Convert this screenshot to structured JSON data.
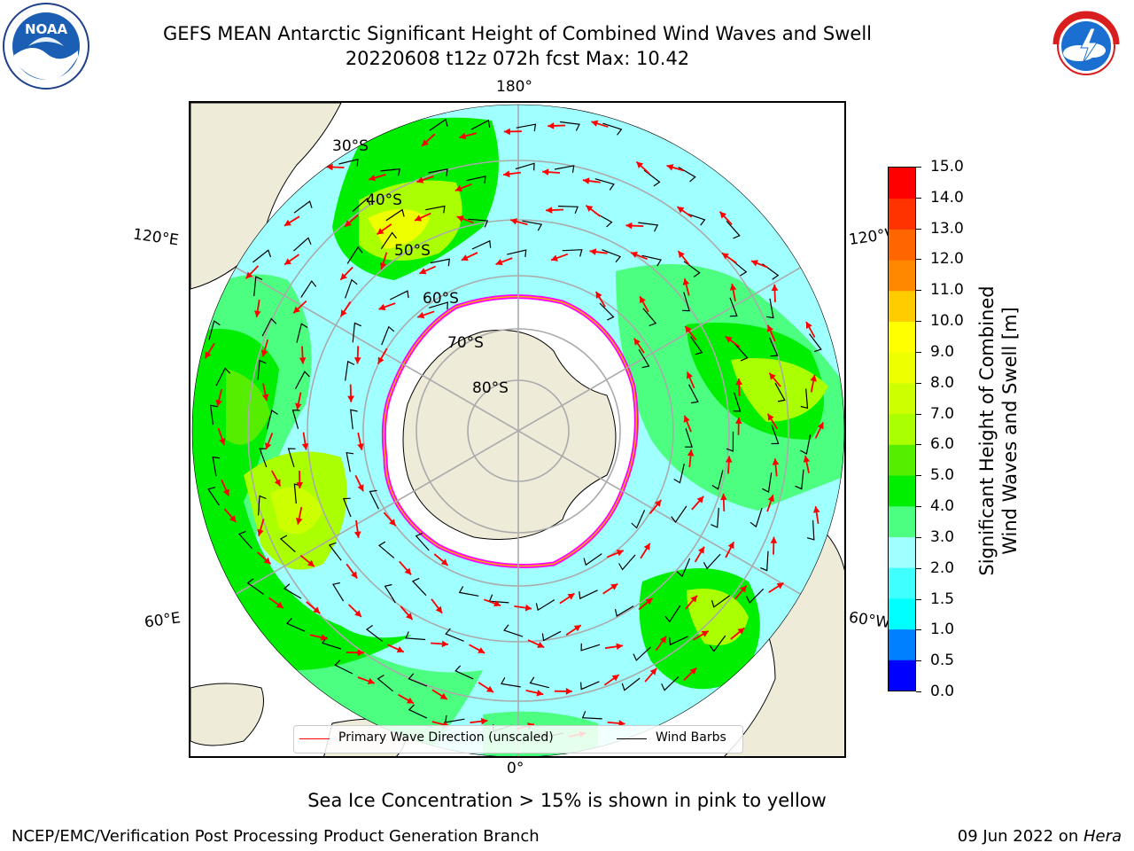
{
  "header": {
    "title_line1": "GEFS MEAN Antarctic Significant Height of Combined Wind Waves and Swell",
    "title_line2": "20220608 t12z 072h fcst   Max: 10.42"
  },
  "logos": {
    "noaa": {
      "icon": "noaa-logo-icon",
      "text": "NOAA",
      "ring_text": "NATIONAL OCEANIC AND ATMOSPHERIC ADMINISTRATION · U.S. DEPARTMENT OF COMMERCE"
    },
    "nws": {
      "icon": "nws-logo-icon",
      "ring_text": "NATIONAL WEATHER SERVICE"
    }
  },
  "map": {
    "projection": "south-polar-stereographic",
    "lon_labels": {
      "top": "180°",
      "bottom": "0°",
      "left_upper": "120°E",
      "left_lower": "60°E",
      "right_upper": "120°W",
      "right_lower": "60°W"
    },
    "lat_labels": [
      "30°S",
      "40°S",
      "50°S",
      "60°S",
      "70°S",
      "80°S"
    ],
    "legend": {
      "wave_direction": "Primary Wave Direction (unscaled)",
      "wind_barbs": "Wind Barbs"
    },
    "colors": {
      "land": "#efebd9",
      "ice": "#ffffff",
      "ice_edge": [
        "#ff00ff",
        "#ffaa00",
        "#ffff00"
      ],
      "arrow": "#ff0000",
      "barb": "#000000",
      "grid": "#aaaaaa"
    }
  },
  "colorbar": {
    "title_line1": "Significant Height of Combined",
    "title_line2": "Wind Waves and Swell [m]",
    "levels": [
      "0.0",
      "0.5",
      "1.0",
      "1.5",
      "2.0",
      "3.0",
      "4.0",
      "5.0",
      "6.0",
      "7.0",
      "8.0",
      "9.0",
      "10.0",
      "11.0",
      "12.0",
      "13.0",
      "14.0",
      "15.0"
    ],
    "colors": [
      "#0000ff",
      "#0080ff",
      "#00ffff",
      "#40ffff",
      "#a0ffff",
      "#4cff80",
      "#00ee00",
      "#55ee00",
      "#aaff00",
      "#ccff00",
      "#eeff00",
      "#ffff00",
      "#ffcc00",
      "#ff8800",
      "#ff6600",
      "#ff3300",
      "#ff0000"
    ]
  },
  "notes": {
    "ice": "Sea Ice Concentration > 15% is shown in pink to yellow"
  },
  "footer": {
    "left": "NCEP/EMC/Verification Post Processing Product Generation Branch",
    "right_prefix": "09 Jun 2022 on ",
    "right_host": "Hera"
  }
}
